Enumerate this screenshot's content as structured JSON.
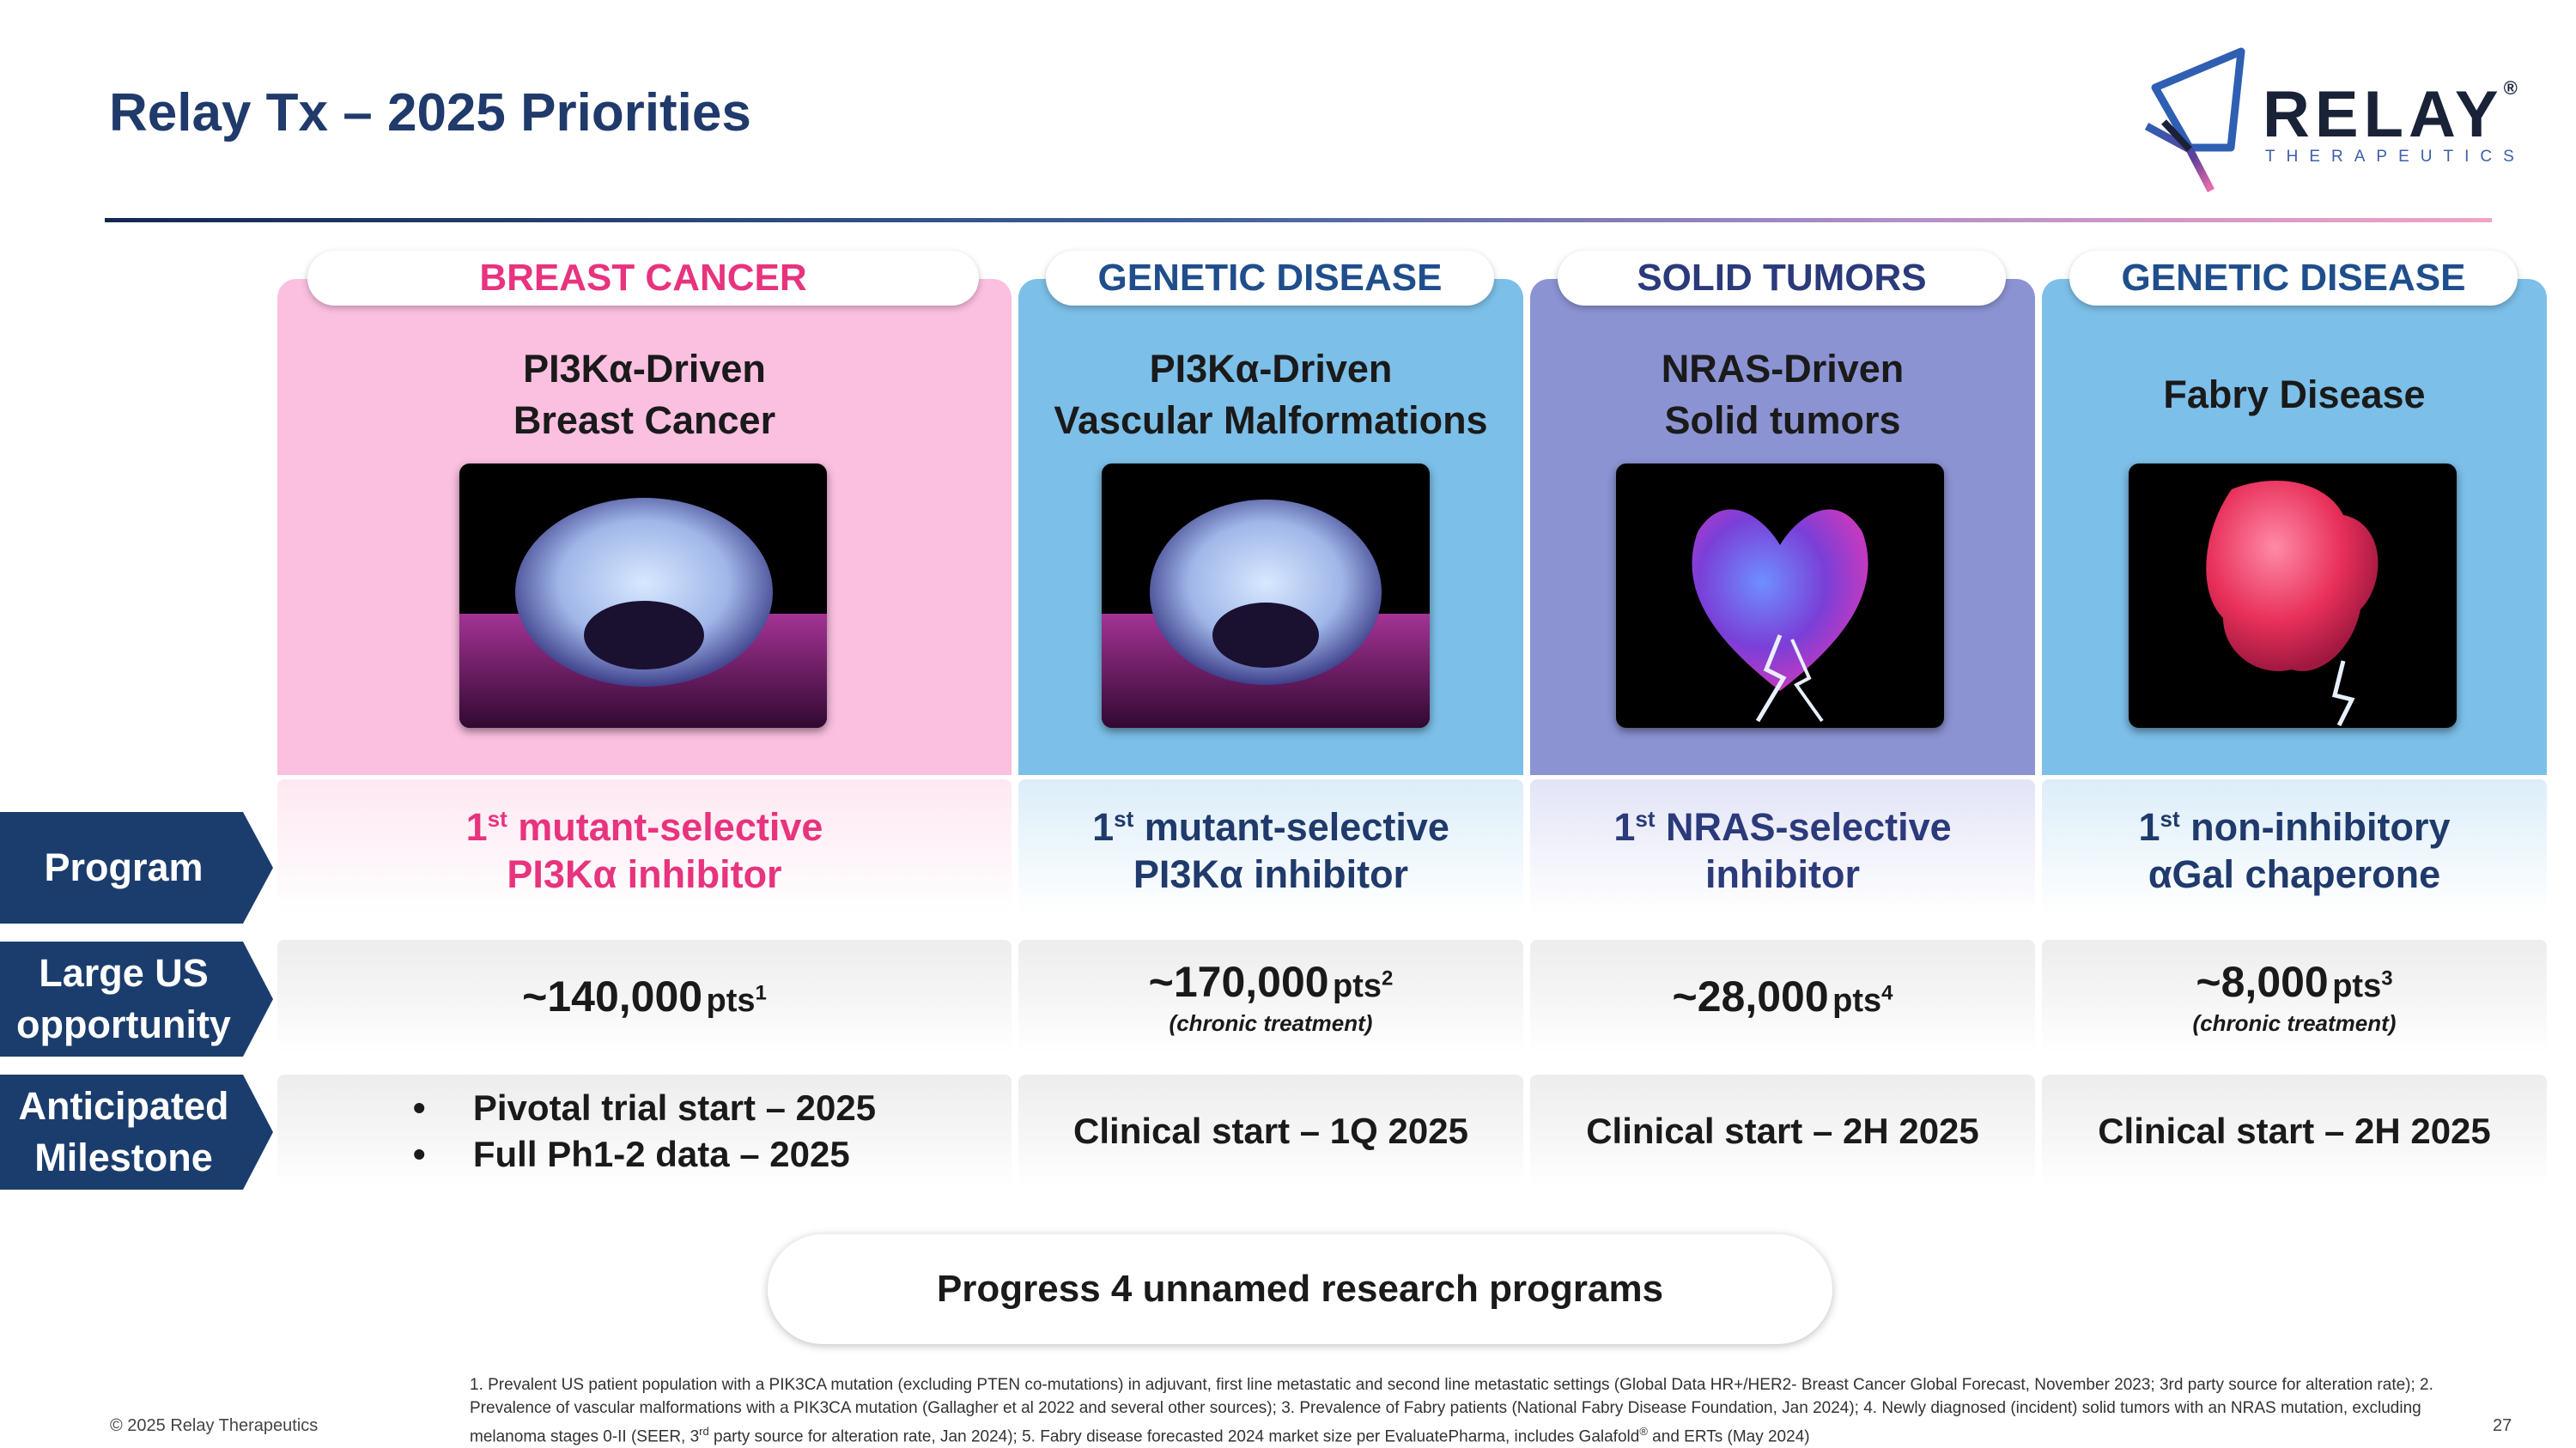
{
  "title": "Relay Tx – 2025 Priorities",
  "logo": {
    "word": "RELAY",
    "sub": "THERAPEUTICS",
    "reg": "®"
  },
  "row_labels": {
    "program": "Program",
    "opportunity": "Large US opportunity",
    "milestone": "Anticipated Milestone"
  },
  "columns": [
    {
      "category": "BREAST CANCER",
      "category_color": "#e8337e",
      "bg_color": "#fbbfe0",
      "condition_line1": "PI3Kα-Driven",
      "condition_line2": "Breast Cancer",
      "image_icon": "protein-structure-image",
      "program_prefix": "1",
      "program_sup": "st",
      "program_line1_rest": " mutant-selective",
      "program_line2": "PI3Kα inhibitor",
      "program_color": "#e8337e",
      "patients": "~140,000",
      "patients_unit": "pts",
      "patients_ref": "1",
      "patients_note": "",
      "milestones": [
        "Pivotal trial start – 2025",
        "Full Ph1-2 data – 2025"
      ]
    },
    {
      "category": "GENETIC DISEASE",
      "category_color": "#1f4e8c",
      "bg_color": "#7cbfe8",
      "condition_line1": "PI3Kα-Driven",
      "condition_line2": "Vascular Malformations",
      "image_icon": "protein-structure-image",
      "program_prefix": "1",
      "program_sup": "st",
      "program_line1_rest": " mutant-selective",
      "program_line2": "PI3Kα inhibitor",
      "program_color": "#1f3a6b",
      "patients": "~170,000",
      "patients_unit": "pts",
      "patients_ref": "2",
      "patients_note": "(chronic treatment)",
      "milestone": "Clinical start – 1Q 2025"
    },
    {
      "category": "SOLID TUMORS",
      "category_color": "#2b3a7a",
      "bg_color": "#8c93d3",
      "condition_line1": "NRAS-Driven",
      "condition_line2": "Solid tumors",
      "image_icon": "nras-structure-image",
      "program_prefix": "1",
      "program_sup": "st",
      "program_line1_rest": " NRAS-selective",
      "program_line2": "inhibitor",
      "program_color": "#2b3a7a",
      "patients": "~28,000",
      "patients_unit": "pts",
      "patients_ref": "4",
      "patients_note": "",
      "milestone": "Clinical start – 2H 2025"
    },
    {
      "category": "GENETIC DISEASE",
      "category_color": "#1f4e8c",
      "bg_color": "#7cbfe8",
      "condition_line1": "Fabry Disease",
      "condition_line2": "",
      "image_icon": "fabry-structure-image",
      "program_prefix": "1",
      "program_sup": "st",
      "program_line1_rest": " non-inhibitory",
      "program_line2": "αGal chaperone",
      "program_color": "#1f3a6b",
      "patients": "~8,000",
      "patients_unit": "pts",
      "patients_ref": "3",
      "patients_note": "(chronic treatment)",
      "milestone": "Clinical start – 2H 2025"
    }
  ],
  "research": "Progress 4 unnamed research programs",
  "footnote_parts": [
    "1. Prevalent US patient population with a PIK3CA mutation (excluding PTEN co-mutations) in adjuvant, first line metastatic and second line metastatic settings (Global Data HR+/HER2- Breast Cancer Global Forecast, November 2023; 3rd party source for alteration rate); 2. Prevalence of vascular malformations with a PIK3CA mutation (Gallagher et al 2022 and several other sources); 3. Prevalence of Fabry patients (National Fabry Disease Foundation, Jan 2024); 4. Newly diagnosed (incident) solid tumors with an NRAS mutation, excluding melanoma stages 0-II (SEER, 3",
    "rd",
    " party source for alteration rate, Jan 2024); 5. Fabry disease forecasted 2024 market size per EvaluatePharma, includes Galafold",
    "®",
    " and ERTs (May 2024)"
  ],
  "copyright": "© 2025 Relay Therapeutics",
  "page_number": "27"
}
